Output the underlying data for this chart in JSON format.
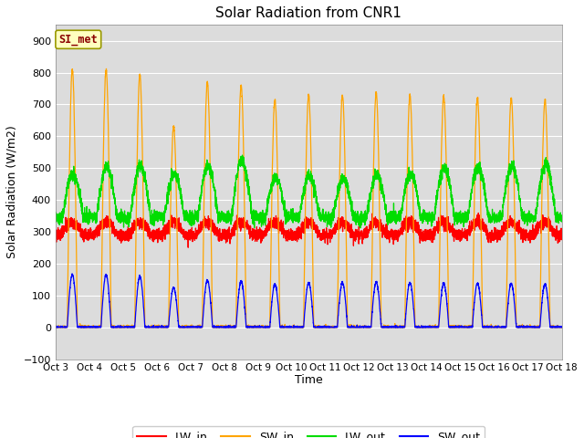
{
  "title": "Solar Radiation from CNR1",
  "xlabel": "Time",
  "ylabel": "Solar Radiation (W/m2)",
  "ylim": [
    -100,
    950
  ],
  "yticks": [
    -100,
    0,
    100,
    200,
    300,
    400,
    500,
    600,
    700,
    800,
    900
  ],
  "xticklabels": [
    "Oct 3",
    "Oct 4",
    "Oct 5",
    "Oct 6",
    "Oct 7",
    "Oct 8",
    "Oct 9",
    "Oct 10",
    "Oct 11",
    "Oct 12",
    "Oct 13",
    "Oct 14",
    "Oct 15",
    "Oct 16",
    "Oct 17",
    "Oct 18"
  ],
  "annotation_text": "SI_met",
  "annotation_color": "#8B0000",
  "annotation_bg": "#FFFFC0",
  "annotation_border": "#999900",
  "colors": {
    "LW_in": "#FF0000",
    "SW_in": "#FFA500",
    "LW_out": "#00DD00",
    "SW_out": "#0000FF"
  },
  "fig_bg_color": "#FFFFFF",
  "axes_bg_color": "#DCDCDC",
  "grid_color": "#FFFFFF",
  "n_days": 15,
  "points_per_day": 288,
  "sw_peaks": [
    810,
    810,
    795,
    630,
    770,
    760,
    715,
    730,
    730,
    735,
    730,
    725,
    720,
    720,
    715
  ],
  "sw_out_peaks": [
    165,
    165,
    160,
    125,
    148,
    145,
    135,
    140,
    140,
    142,
    140,
    138,
    138,
    138,
    135
  ],
  "lw_out_peaks": [
    480,
    505,
    505,
    480,
    505,
    525,
    470,
    475,
    465,
    480,
    480,
    500,
    500,
    505,
    510
  ],
  "lw_in_base": 290,
  "lw_out_base": 345
}
